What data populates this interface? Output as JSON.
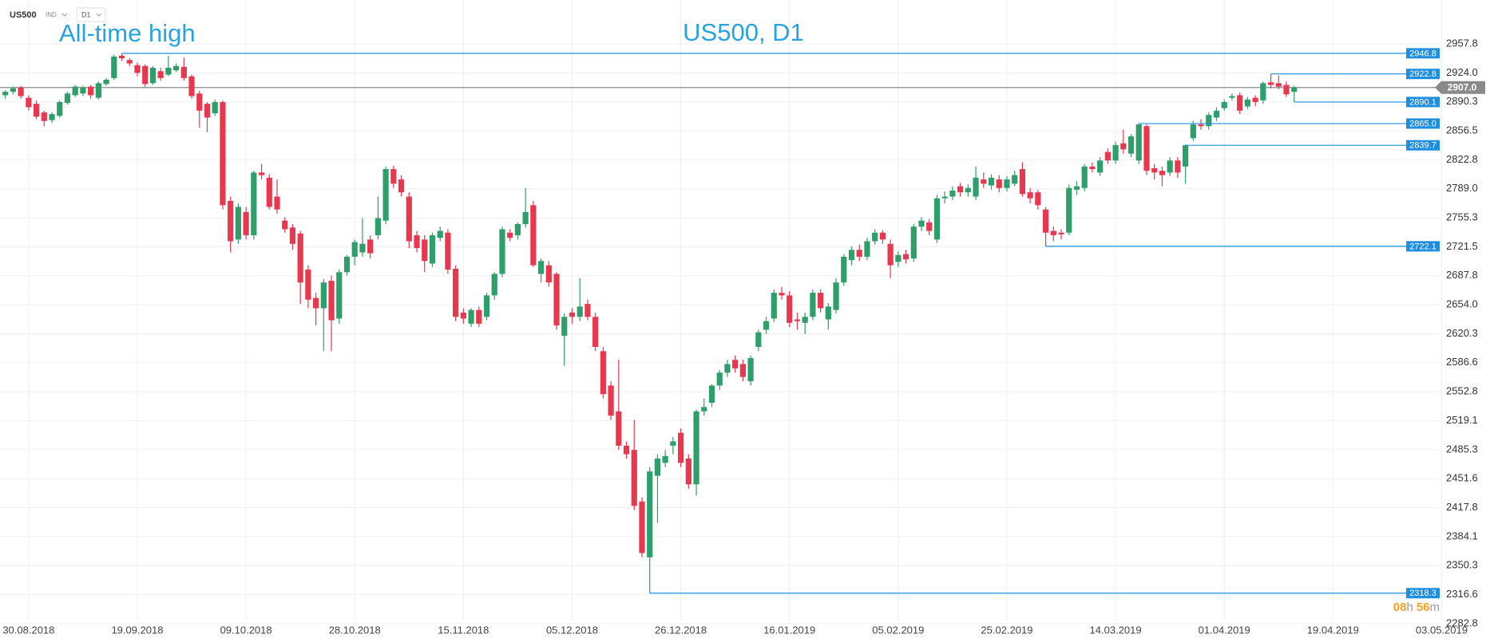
{
  "chart_data": {
    "type": "candlestick",
    "symbol": "US500",
    "market": "IND",
    "timeframe": "D1",
    "title": "US500, D1",
    "annotation": "All-time high",
    "up_color": "#2e9e6b",
    "down_color": "#e8384f",
    "level_color": "#1e8fe0",
    "last_price_color": "#8a8a8a",
    "grid": true,
    "ylim": [
      2282.8,
      2957.8
    ],
    "yticks": [
      2957.8,
      {
        "value": 2924,
        "label": "2924.0"
      },
      2890.3,
      2856.5,
      2822.8,
      {
        "value": 2789,
        "label": "2789.0"
      },
      2755.3,
      2721.5,
      2687.8,
      {
        "value": 2654,
        "label": "2654.0"
      },
      2620.3,
      2586.6,
      2552.8,
      2519.1,
      2485.3,
      2451.6,
      2417.8,
      2384.1,
      2350.3,
      2316.6,
      2282.8
    ],
    "levels": [
      2946.8,
      2922.8,
      2890.1,
      {
        "value": 2865,
        "label": "2865.0"
      },
      2839.7,
      2722.1,
      2318.3
    ],
    "last_price": {
      "value": 2907,
      "label": "2907.0"
    },
    "countdown": {
      "hours": "08",
      "hours_unit": "h",
      "minutes": "56",
      "minutes_unit": "m"
    },
    "categories": [
      null,
      null,
      null,
      "30.08.2018",
      null,
      null,
      null,
      null,
      null,
      null,
      null,
      null,
      null,
      null,
      null,
      null,
      null,
      "19.09.2018",
      null,
      null,
      null,
      null,
      null,
      null,
      null,
      null,
      null,
      null,
      null,
      null,
      null,
      "09.10.2018",
      null,
      null,
      null,
      null,
      null,
      null,
      null,
      null,
      null,
      null,
      null,
      null,
      null,
      "28.10.2018",
      null,
      null,
      null,
      null,
      null,
      null,
      null,
      null,
      null,
      null,
      null,
      null,
      null,
      "15.11.2018",
      null,
      null,
      null,
      null,
      null,
      null,
      null,
      null,
      null,
      null,
      null,
      null,
      null,
      "05.12.2018",
      null,
      null,
      null,
      null,
      null,
      null,
      null,
      null,
      null,
      null,
      null,
      null,
      null,
      "26.12.2018",
      null,
      null,
      null,
      null,
      null,
      null,
      null,
      null,
      null,
      null,
      null,
      null,
      null,
      "16.01.2019",
      null,
      null,
      null,
      null,
      null,
      null,
      null,
      null,
      null,
      null,
      null,
      null,
      null,
      "05.02.2019",
      null,
      null,
      null,
      null,
      null,
      null,
      null,
      null,
      null,
      null,
      null,
      null,
      null,
      "25.02.2019",
      null,
      null,
      null,
      null,
      null,
      null,
      null,
      null,
      null,
      null,
      null,
      null,
      null,
      "14.03.2019",
      null,
      null,
      null,
      null,
      null,
      null,
      null,
      null,
      null,
      null,
      null,
      null,
      null,
      "01.04.2019",
      null,
      null,
      null,
      null,
      null,
      null,
      null,
      null,
      null,
      null,
      null,
      null,
      null,
      "19.04.2019",
      null,
      null,
      null,
      null,
      null,
      null,
      null,
      null,
      null,
      null,
      null,
      null,
      null,
      "03.05.2019"
    ],
    "open": [
      2898,
      2902,
      2907,
      2895,
      2888,
      2878,
      2869,
      2874,
      2889,
      2898,
      2900,
      2908,
      2895,
      2911,
      2918,
      2944,
      2939,
      2933,
      2932,
      2912,
      2926,
      2922,
      2927,
      2931,
      2920,
      2900,
      2888,
      2877,
      2890,
      2775,
      2730,
      2762,
      2735,
      2808,
      2802,
      2780,
      2752,
      2744,
      2737,
      2695,
      2662,
      2650,
      2682,
      2638,
      2692,
      2710,
      2715,
      2730,
      2735,
      2752,
      2812,
      2800,
      2780,
      2735,
      2730,
      2702,
      2732,
      2738,
      2696,
      2645,
      2632,
      2648,
      2640,
      2665,
      2690,
      2738,
      2735,
      2748,
      2770,
      2690,
      2700,
      2690,
      2618,
      2645,
      2640,
      2655,
      2640,
      2600,
      2560,
      2530,
      2490,
      2485,
      2425,
      2360,
      2455,
      2470,
      2490,
      2505,
      2475,
      2445,
      2530,
      2540,
      2560,
      2575,
      2590,
      2585,
      2565,
      2605,
      2625,
      2638,
      2668,
      2665,
      2637,
      2633,
      2640,
      2668,
      2637,
      2648,
      2680,
      2706,
      2718,
      2710,
      2728,
      2738,
      2725,
      2704,
      2713,
      2708,
      2745,
      2750,
      2730,
      2778,
      2780,
      2792,
      2785,
      2780,
      2800,
      2793,
      2800,
      2790,
      2795,
      2812,
      2785,
      2785,
      2765,
      2740,
      2738,
      2738,
      2788,
      2790,
      2815,
      2808,
      2832,
      2822,
      2842,
      2830,
      2822,
      2862,
      2813,
      2810,
      2808,
      2822,
      2815,
      2848,
      2864,
      2862,
      2872,
      2883,
      2895,
      2898,
      2885,
      2895,
      2892,
      2913,
      2912,
      2910,
      2902,
      null,
      null,
      null,
      null,
      null,
      null,
      null,
      null,
      null,
      null,
      null,
      null,
      null,
      null,
      null,
      null,
      null,
      null,
      null
    ],
    "high": [
      2904,
      2908,
      2909,
      2898,
      2892,
      2880,
      2878,
      2892,
      2902,
      2910,
      2909,
      2910,
      2914,
      2918,
      2945,
      2946.8,
      2941,
      2936,
      2934,
      2932,
      2930,
      2944,
      2935,
      2942,
      2922,
      2903,
      2890,
      2893,
      2892,
      2780,
      2772,
      2768,
      2810,
      2818,
      2806,
      2800,
      2756,
      2748,
      2740,
      2700,
      2668,
      2684,
      2688,
      2695,
      2712,
      2730,
      2755,
      2735,
      2780,
      2815,
      2816,
      2805,
      2785,
      2740,
      2735,
      2738,
      2745,
      2742,
      2700,
      2650,
      2650,
      2652,
      2668,
      2692,
      2745,
      2742,
      2750,
      2790,
      2775,
      2708,
      2705,
      2692,
      2644,
      2650,
      2685,
      2660,
      2645,
      2605,
      2565,
      2590,
      2495,
      2520,
      2430,
      2465,
      2480,
      2485,
      2500,
      2510,
      2480,
      2532,
      2545,
      2562,
      2578,
      2590,
      2595,
      2590,
      2595,
      2625,
      2640,
      2672,
      2675,
      2670,
      2645,
      2645,
      2672,
      2672,
      2656,
      2685,
      2713,
      2722,
      2724,
      2732,
      2742,
      2741,
      2730,
      2716,
      2718,
      2748,
      2756,
      2754,
      2782,
      2786,
      2792,
      2796,
      2794,
      2815,
      2808,
      2806,
      2805,
      2804,
      2810,
      2820,
      2790,
      2788,
      2768,
      2745,
      2742,
      2794,
      2798,
      2818,
      2820,
      2826,
      2836,
      2844,
      2858,
      2853,
      2865,
      2864,
      2818,
      2815,
      2826,
      2826,
      2840.5,
      2868,
      2870,
      2878,
      2884,
      2893,
      2900,
      2901,
      2896,
      2898,
      2914,
      2922.8,
      2921,
      2914,
      2909,
      null,
      null,
      null,
      null,
      null,
      null,
      null,
      null,
      null,
      null,
      null,
      null,
      null,
      null,
      null,
      null,
      null,
      null,
      null
    ],
    "low": [
      2894,
      2899,
      2894,
      2880,
      2870,
      2862,
      2866,
      2872,
      2887,
      2896,
      2897,
      2894,
      2893,
      2909,
      2916,
      2938,
      2932,
      2920,
      2908,
      2910,
      2915,
      2920,
      2925,
      2915,
      2894,
      2860,
      2855,
      2874,
      2765,
      2715,
      2725,
      2730,
      2730,
      2800,
      2765,
      2760,
      2738,
      2718,
      2655,
      2650,
      2630,
      2600,
      2600,
      2632,
      2688,
      2700,
      2710,
      2708,
      2730,
      2748,
      2790,
      2780,
      2720,
      2715,
      2692,
      2698,
      2728,
      2690,
      2635,
      2632,
      2628,
      2628,
      2636,
      2660,
      2686,
      2728,
      2730,
      2744,
      2698,
      2680,
      2675,
      2625,
      2583,
      2632,
      2635,
      2636,
      2600,
      2545,
      2520,
      2485,
      2475,
      2415,
      2360,
      2318.3,
      2400,
      2465,
      2480,
      2465,
      2440,
      2432,
      2525,
      2535,
      2555,
      2570,
      2575,
      2565,
      2560,
      2600,
      2620,
      2634,
      2660,
      2628,
      2625,
      2620,
      2636,
      2645,
      2625,
      2644,
      2676,
      2700,
      2705,
      2706,
      2724,
      2725,
      2685,
      2698,
      2702,
      2704,
      2740,
      2735,
      2726,
      2772,
      2776,
      2780,
      2780,
      2776,
      2790,
      2788,
      2785,
      2786,
      2792,
      2780,
      2772,
      2765,
      2722.1,
      2728,
      2730,
      2735,
      2782,
      2786,
      2808,
      2804,
      2818,
      2818,
      2830,
      2826,
      2818,
      2805,
      2800,
      2792,
      2804,
      2802,
      2795,
      2845,
      2858,
      2858,
      2868,
      2880,
      2892,
      2876,
      2882,
      2885,
      2888,
      2906,
      2905,
      2896,
      2890.1,
      null,
      null,
      null,
      null,
      null,
      null,
      null,
      null,
      null,
      null,
      null,
      null,
      null,
      null,
      null,
      null,
      null,
      null,
      null
    ],
    "close": [
      2902,
      2906,
      2897,
      2884,
      2873,
      2868,
      2876,
      2890,
      2900,
      2908,
      2907,
      2898,
      2912,
      2916,
      2943,
      2941,
      2935,
      2924,
      2911,
      2930,
      2918,
      2930,
      2932,
      2918,
      2897,
      2880,
      2872,
      2890,
      2770,
      2728,
      2768,
      2735,
      2808,
      2805,
      2768,
      2765,
      2742,
      2725,
      2680,
      2660,
      2650,
      2680,
      2636,
      2692,
      2710,
      2727,
      2725,
      2714,
      2755,
      2812,
      2795,
      2785,
      2728,
      2720,
      2705,
      2735,
      2740,
      2695,
      2640,
      2638,
      2648,
      2632,
      2665,
      2690,
      2742,
      2732,
      2748,
      2762,
      2700,
      2705,
      2680,
      2630,
      2640,
      2640,
      2652,
      2640,
      2605,
      2550,
      2525,
      2490,
      2480,
      2420,
      2365,
      2460,
      2475,
      2478,
      2495,
      2470,
      2445,
      2530,
      2535,
      2560,
      2575,
      2585,
      2580,
      2570,
      2592,
      2622,
      2635,
      2668,
      2665,
      2633,
      2635,
      2640,
      2668,
      2650,
      2652,
      2680,
      2710,
      2718,
      2710,
      2728,
      2738,
      2730,
      2700,
      2712,
      2707,
      2745,
      2752,
      2740,
      2778,
      2780,
      2787,
      2785,
      2790,
      2802,
      2795,
      2802,
      2790,
      2800,
      2805,
      2783,
      2778,
      2770,
      2738,
      2735,
      2736,
      2790,
      2792,
      2815,
      2812,
      2822,
      2822,
      2840,
      2835,
      2850,
      2864,
      2810,
      2808,
      2805,
      2822,
      2808,
      2839.7,
      2864,
      2862,
      2875,
      2880,
      2890,
      2897,
      2880,
      2893,
      2890,
      2912,
      2910,
      2908,
      2899,
      2907,
      null,
      null,
      null,
      null,
      null,
      null,
      null,
      null,
      null,
      null,
      null,
      null,
      null,
      null,
      null,
      null,
      null,
      null,
      null
    ]
  }
}
